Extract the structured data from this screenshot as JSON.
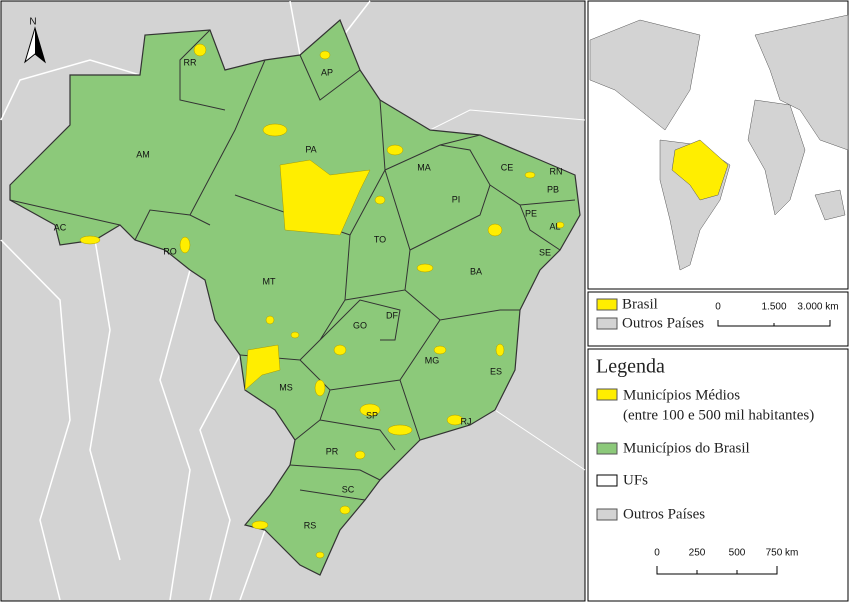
{
  "main_map": {
    "north": "N",
    "state_labels": [
      "RR",
      "AP",
      "AM",
      "PA",
      "MA",
      "CE",
      "RN",
      "PB",
      "PI",
      "PE",
      "AL",
      "SE",
      "AC",
      "RO",
      "TO",
      "BA",
      "MT",
      "GO",
      "DF",
      "MG",
      "ES",
      "MS",
      "SP",
      "RJ",
      "PR",
      "SC",
      "RS"
    ]
  },
  "inset": {
    "legend": [
      "Brasil",
      "Outros Países"
    ],
    "scale": [
      "0",
      "1.500",
      "3.000 km"
    ]
  },
  "legend": {
    "title": "Legenda",
    "items": [
      {
        "lines": [
          "Municípios Médios",
          "(entre 100 e 500 mil habitantes)"
        ]
      },
      {
        "lines": [
          "Municípios do Brasil"
        ]
      },
      {
        "lines": [
          "UFs"
        ]
      },
      {
        "lines": [
          "Outros Países"
        ]
      }
    ],
    "scale": [
      "0",
      "250",
      "500",
      "750 km"
    ]
  }
}
